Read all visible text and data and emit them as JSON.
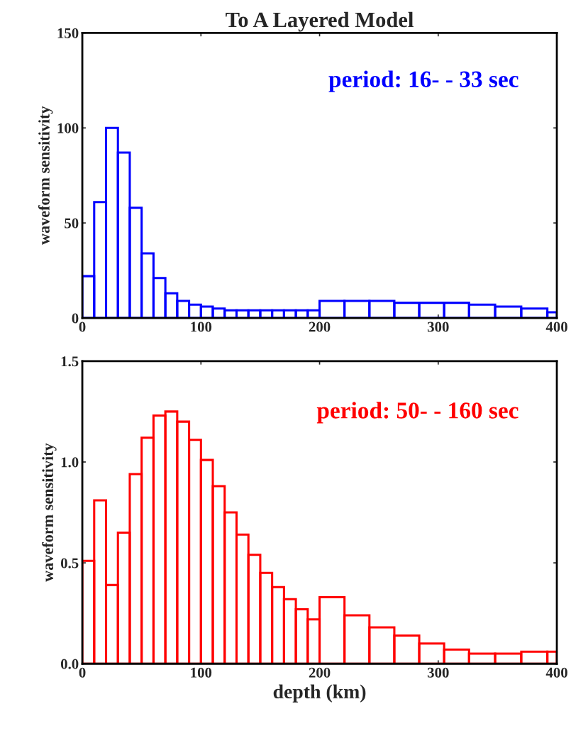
{
  "chart_data": [
    {
      "type": "histogram",
      "title": "To A Layered Model",
      "ylabel": "waveform sensitivity",
      "annotations": [
        "period: 16- - 33 sec"
      ],
      "bins": [
        0,
        10,
        20,
        30,
        40,
        50,
        60,
        70,
        80,
        90,
        100,
        110,
        120,
        130,
        140,
        150,
        160,
        170,
        180,
        190,
        200,
        221,
        242,
        263,
        284,
        305,
        326,
        348,
        370,
        392,
        400
      ],
      "values": [
        22,
        61,
        100,
        87,
        58,
        34,
        21,
        13,
        9,
        7,
        6,
        5,
        4,
        4,
        4,
        4,
        4,
        4,
        4,
        4,
        9,
        9,
        9,
        8,
        8,
        8,
        7,
        6,
        5,
        3
      ],
      "color": "#0000ff",
      "xlim": [
        0,
        400
      ],
      "xticks": [
        0,
        100,
        200,
        300,
        400
      ],
      "ylim": [
        0,
        150
      ],
      "yticks": [
        0,
        50,
        100,
        150
      ],
      "grid": false
    },
    {
      "type": "histogram",
      "xlabel": "depth (km)",
      "ylabel": "waveform sensitivity",
      "annotations": [
        "period: 50- - 160 sec"
      ],
      "bins": [
        0,
        10,
        20,
        30,
        40,
        50,
        60,
        70,
        80,
        90,
        100,
        110,
        120,
        130,
        140,
        150,
        160,
        170,
        180,
        190,
        200,
        221,
        242,
        263,
        284,
        305,
        326,
        348,
        370,
        392,
        400
      ],
      "values": [
        0.51,
        0.81,
        0.39,
        0.65,
        0.94,
        1.12,
        1.23,
        1.25,
        1.2,
        1.11,
        1.01,
        0.88,
        0.75,
        0.64,
        0.54,
        0.45,
        0.38,
        0.32,
        0.27,
        0.22,
        0.33,
        0.24,
        0.18,
        0.14,
        0.1,
        0.07,
        0.05,
        0.05,
        0.06,
        0.06
      ],
      "color": "#ff0000",
      "xlim": [
        0,
        400
      ],
      "xticks": [
        0,
        100,
        200,
        300,
        400
      ],
      "ylim": [
        0,
        1.5
      ],
      "yticks": [
        {
          "value": 0,
          "label": "0.0"
        },
        {
          "value": 0.5,
          "label": "0.5"
        },
        {
          "value": 1.0,
          "label": "1.0"
        },
        {
          "value": 1.5,
          "label": "1.5"
        }
      ],
      "grid": false
    }
  ]
}
